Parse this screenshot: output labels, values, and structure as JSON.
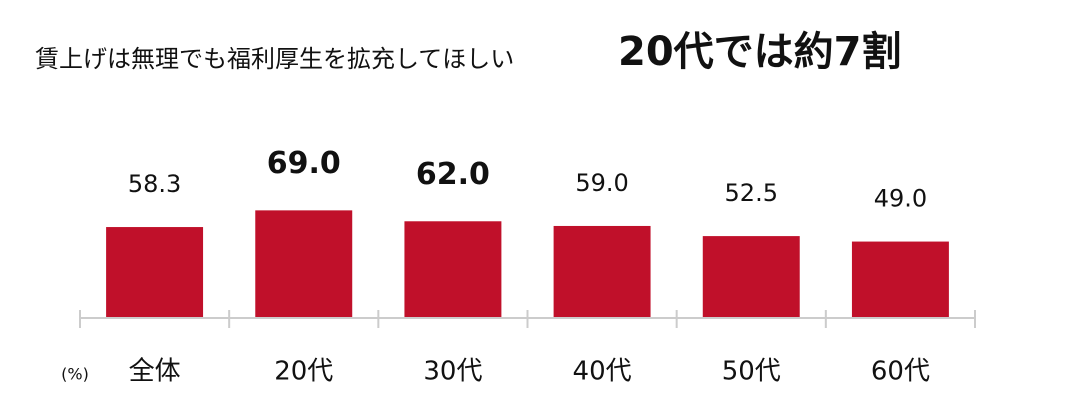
{
  "chart_data": {
    "type": "bar",
    "title": "賃上げは無理でも福利厚生を拡充してほしい",
    "subtitle": "20代では約7割",
    "unit_label": "(%)",
    "categories": [
      "全体",
      "20代",
      "30代",
      "40代",
      "50代",
      "60代"
    ],
    "values": [
      58.3,
      69.0,
      62.0,
      59.0,
      52.5,
      49.0
    ],
    "value_labels": [
      "58.3",
      "69.0",
      "62.0",
      "59.0",
      "52.5",
      "49.0"
    ],
    "bold_value_labels": [
      1,
      2
    ],
    "color": "#c0102a",
    "ylim": [
      0,
      100
    ]
  }
}
